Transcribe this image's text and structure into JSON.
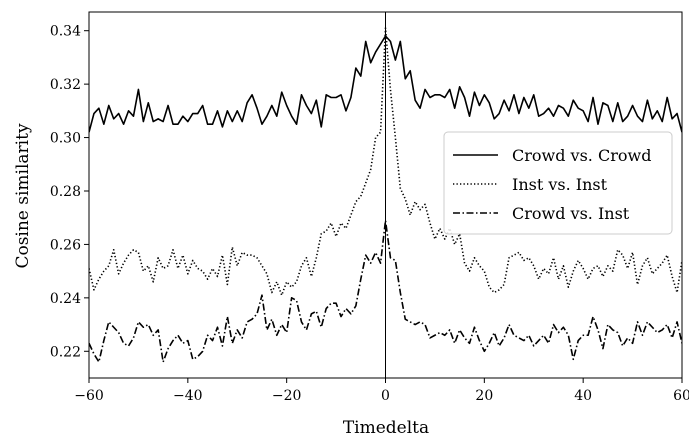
{
  "chart_data": {
    "type": "line",
    "title": "",
    "xlabel": "Timedelta",
    "ylabel": "Cosine similarity",
    "xlim": [
      -60,
      60
    ],
    "ylim": [
      0.21,
      0.347
    ],
    "xticks": [
      -60,
      -40,
      -20,
      0,
      20,
      40,
      60
    ],
    "xtick_labels": [
      "−60",
      "−40",
      "−20",
      "0",
      "20",
      "40",
      "60"
    ],
    "yticks": [
      0.22,
      0.24,
      0.26,
      0.28,
      0.3,
      0.32,
      0.34
    ],
    "ytick_labels": [
      "0.22",
      "0.24",
      "0.26",
      "0.28",
      "0.30",
      "0.32",
      "0.34"
    ],
    "vertical_line_x": 0,
    "grid": false,
    "legend_position": "right",
    "x": [
      -60,
      -59,
      -58,
      -57,
      -56,
      -55,
      -54,
      -53,
      -52,
      -51,
      -50,
      -49,
      -48,
      -47,
      -46,
      -45,
      -44,
      -43,
      -42,
      -41,
      -40,
      -39,
      -38,
      -37,
      -36,
      -35,
      -34,
      -33,
      -32,
      -31,
      -30,
      -29,
      -28,
      -27,
      -26,
      -25,
      -24,
      -23,
      -22,
      -21,
      -20,
      -19,
      -18,
      -17,
      -16,
      -15,
      -14,
      -13,
      -12,
      -11,
      -10,
      -9,
      -8,
      -7,
      -6,
      -5,
      -4,
      -3,
      -2,
      -1,
      0,
      1,
      2,
      3,
      4,
      5,
      6,
      7,
      8,
      9,
      10,
      11,
      12,
      13,
      14,
      15,
      16,
      17,
      18,
      19,
      20,
      21,
      22,
      23,
      24,
      25,
      26,
      27,
      28,
      29,
      30,
      31,
      32,
      33,
      34,
      35,
      36,
      37,
      38,
      39,
      40,
      41,
      42,
      43,
      44,
      45,
      46,
      47,
      48,
      49,
      50,
      51,
      52,
      53,
      54,
      55,
      56,
      57,
      58,
      59,
      60
    ],
    "series": [
      {
        "name": "Crowd vs. Crowd",
        "style": "solid",
        "values": [
          0.302,
          0.309,
          0.311,
          0.305,
          0.312,
          0.307,
          0.309,
          0.305,
          0.31,
          0.308,
          0.318,
          0.306,
          0.313,
          0.306,
          0.307,
          0.306,
          0.312,
          0.305,
          0.305,
          0.308,
          0.306,
          0.309,
          0.309,
          0.312,
          0.305,
          0.305,
          0.31,
          0.304,
          0.31,
          0.306,
          0.31,
          0.306,
          0.313,
          0.316,
          0.311,
          0.305,
          0.308,
          0.312,
          0.308,
          0.317,
          0.312,
          0.308,
          0.305,
          0.316,
          0.312,
          0.309,
          0.314,
          0.304,
          0.316,
          0.315,
          0.315,
          0.316,
          0.31,
          0.315,
          0.326,
          0.323,
          0.336,
          0.328,
          0.332,
          0.335,
          0.338,
          0.336,
          0.329,
          0.336,
          0.322,
          0.325,
          0.314,
          0.311,
          0.318,
          0.315,
          0.316,
          0.316,
          0.315,
          0.318,
          0.311,
          0.319,
          0.315,
          0.308,
          0.317,
          0.312,
          0.316,
          0.313,
          0.307,
          0.309,
          0.314,
          0.31,
          0.316,
          0.309,
          0.315,
          0.311,
          0.316,
          0.308,
          0.309,
          0.311,
          0.308,
          0.312,
          0.311,
          0.308,
          0.314,
          0.311,
          0.31,
          0.306,
          0.315,
          0.305,
          0.313,
          0.312,
          0.306,
          0.313,
          0.306,
          0.308,
          0.312,
          0.308,
          0.306,
          0.314,
          0.307,
          0.31,
          0.306,
          0.315,
          0.307,
          0.309,
          0.302
        ]
      },
      {
        "name": "Inst vs. Inst",
        "style": "dotted",
        "values": [
          0.251,
          0.243,
          0.247,
          0.25,
          0.252,
          0.258,
          0.249,
          0.253,
          0.256,
          0.258,
          0.257,
          0.25,
          0.252,
          0.246,
          0.255,
          0.251,
          0.252,
          0.258,
          0.251,
          0.256,
          0.249,
          0.254,
          0.251,
          0.25,
          0.247,
          0.251,
          0.248,
          0.256,
          0.245,
          0.259,
          0.252,
          0.257,
          0.256,
          0.256,
          0.255,
          0.252,
          0.249,
          0.242,
          0.246,
          0.241,
          0.246,
          0.244,
          0.246,
          0.252,
          0.255,
          0.248,
          0.255,
          0.264,
          0.265,
          0.268,
          0.263,
          0.268,
          0.266,
          0.271,
          0.276,
          0.278,
          0.283,
          0.288,
          0.3,
          0.302,
          0.341,
          0.318,
          0.3,
          0.281,
          0.277,
          0.271,
          0.276,
          0.273,
          0.275,
          0.268,
          0.262,
          0.266,
          0.262,
          0.266,
          0.26,
          0.264,
          0.253,
          0.25,
          0.255,
          0.252,
          0.25,
          0.244,
          0.242,
          0.243,
          0.245,
          0.255,
          0.256,
          0.257,
          0.254,
          0.255,
          0.252,
          0.247,
          0.251,
          0.249,
          0.255,
          0.247,
          0.252,
          0.244,
          0.25,
          0.254,
          0.251,
          0.247,
          0.251,
          0.252,
          0.248,
          0.252,
          0.25,
          0.258,
          0.256,
          0.251,
          0.257,
          0.245,
          0.252,
          0.255,
          0.249,
          0.251,
          0.253,
          0.256,
          0.248,
          0.242,
          0.254
        ]
      },
      {
        "name": "Crowd vs. Inst",
        "style": "dashdot",
        "values": [
          0.223,
          0.219,
          0.216,
          0.224,
          0.231,
          0.229,
          0.227,
          0.223,
          0.222,
          0.225,
          0.231,
          0.229,
          0.23,
          0.226,
          0.228,
          0.216,
          0.221,
          0.224,
          0.226,
          0.223,
          0.224,
          0.217,
          0.218,
          0.22,
          0.226,
          0.224,
          0.229,
          0.222,
          0.233,
          0.223,
          0.228,
          0.225,
          0.231,
          0.232,
          0.234,
          0.241,
          0.228,
          0.232,
          0.226,
          0.23,
          0.227,
          0.24,
          0.239,
          0.231,
          0.228,
          0.234,
          0.235,
          0.229,
          0.236,
          0.238,
          0.238,
          0.233,
          0.236,
          0.234,
          0.237,
          0.247,
          0.256,
          0.253,
          0.257,
          0.253,
          0.269,
          0.255,
          0.254,
          0.242,
          0.232,
          0.231,
          0.23,
          0.231,
          0.23,
          0.225,
          0.226,
          0.227,
          0.226,
          0.228,
          0.223,
          0.228,
          0.225,
          0.223,
          0.229,
          0.224,
          0.22,
          0.223,
          0.227,
          0.222,
          0.225,
          0.23,
          0.226,
          0.225,
          0.224,
          0.226,
          0.222,
          0.224,
          0.226,
          0.223,
          0.23,
          0.227,
          0.229,
          0.226,
          0.217,
          0.224,
          0.226,
          0.226,
          0.233,
          0.228,
          0.221,
          0.23,
          0.228,
          0.227,
          0.222,
          0.225,
          0.223,
          0.231,
          0.226,
          0.231,
          0.229,
          0.227,
          0.228,
          0.23,
          0.225,
          0.231,
          0.223
        ]
      }
    ]
  }
}
